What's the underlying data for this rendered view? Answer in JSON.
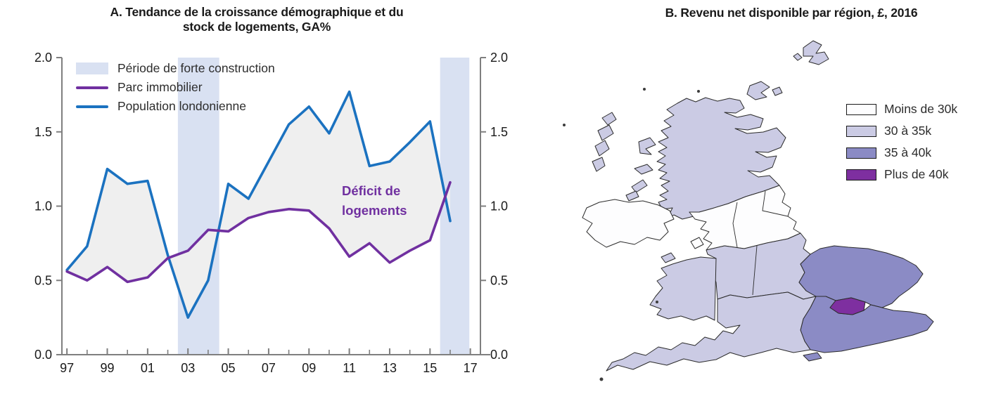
{
  "panel_a": {
    "title": "A. Tendance de la croissance démographique et du\nstock de logements, GA%",
    "annotation": "Déficit de\nlogements",
    "annotation_color": "#7030A0"
  },
  "chart_data": {
    "type": "line",
    "title": "A. Tendance de la croissance démographique et du stock de logements, GA%",
    "xlabel": "",
    "ylabel": "GA%",
    "x": [
      1997,
      1998,
      1999,
      2000,
      2001,
      2002,
      2003,
      2004,
      2005,
      2006,
      2007,
      2008,
      2009,
      2010,
      2011,
      2012,
      2013,
      2014,
      2015,
      2016
    ],
    "series": [
      {
        "name": "Parc immobilier",
        "color": "#7030A0",
        "values": [
          0.56,
          0.5,
          0.59,
          0.49,
          0.52,
          0.65,
          0.7,
          0.84,
          0.83,
          0.92,
          0.96,
          0.98,
          0.97,
          0.85,
          0.66,
          0.75,
          0.62,
          0.7,
          0.77,
          1.16
        ]
      },
      {
        "name": "Population londonienne",
        "color": "#1B72C0",
        "values": [
          0.57,
          0.73,
          1.25,
          1.15,
          1.17,
          0.67,
          0.25,
          0.5,
          1.15,
          1.05,
          1.3,
          1.55,
          1.67,
          1.49,
          1.77,
          1.27,
          1.3,
          1.43,
          1.57,
          0.9
        ]
      }
    ],
    "bands": {
      "label": "Période de forte construction",
      "color": "#D9E1F2",
      "ranges": [
        [
          2002.5,
          2004.55
        ],
        [
          2015.5,
          2016.95
        ]
      ]
    },
    "fill_between": {
      "between": [
        "Population londonienne",
        "Parc immobilier"
      ],
      "color": "#EFEFEF"
    },
    "ylim": [
      0,
      2
    ],
    "xlim": [
      1996.75,
      2017.5
    ],
    "grid": false,
    "legend_position": "top-left-inside",
    "dual_y_axis": true,
    "axis_color": "#7F7F7F",
    "y_ticks": [
      {
        "v": 0.0,
        "label": "0.0"
      },
      {
        "v": 0.5,
        "label": "0.5"
      },
      {
        "v": 1.0,
        "label": "1.0"
      },
      {
        "v": 1.5,
        "label": "1.5"
      },
      {
        "v": 2.0,
        "label": "2.0"
      }
    ],
    "x_ticks_major": [
      {
        "v": 1997,
        "label": "97"
      },
      {
        "v": 1999,
        "label": "99"
      },
      {
        "v": 2001,
        "label": "01"
      },
      {
        "v": 2003,
        "label": "03"
      },
      {
        "v": 2005,
        "label": "05"
      },
      {
        "v": 2007,
        "label": "07"
      },
      {
        "v": 2009,
        "label": "09"
      },
      {
        "v": 2011,
        "label": "11"
      },
      {
        "v": 2013,
        "label": "13"
      },
      {
        "v": 2015,
        "label": "15"
      },
      {
        "v": 2017,
        "label": "17"
      }
    ],
    "x_minor_tick_step": 1
  },
  "panel_b": {
    "title": "B. Revenu net disponible par région, £, 2016"
  },
  "map": {
    "outline_color": "#2b2b2b",
    "bands": {
      "b1": {
        "label": "Moins de 30k",
        "color": "#FDFDFE"
      },
      "b2": {
        "label": "30 à 35k",
        "color": "#CBCBE4"
      },
      "b3": {
        "label": "35 à 40k",
        "color": "#8B8BC5"
      },
      "b4": {
        "label": "Plus de 40k",
        "color": "#7E2FA0"
      }
    },
    "legend_order": [
      "b1",
      "b2",
      "b3",
      "b4"
    ],
    "regions": [
      {
        "id": "scotland",
        "band": "b2"
      },
      {
        "id": "shetland",
        "band": "b2"
      },
      {
        "id": "orkney",
        "band": "b2"
      },
      {
        "id": "outer-hebrides",
        "band": "b2"
      },
      {
        "id": "inner-hebrides",
        "band": "b2"
      },
      {
        "id": "northern-ireland",
        "band": "b1"
      },
      {
        "id": "isle-of-man",
        "band": "b1"
      },
      {
        "id": "north-england",
        "band": "b1"
      },
      {
        "id": "midlands",
        "band": "b2"
      },
      {
        "id": "wales",
        "band": "b2"
      },
      {
        "id": "anglesey",
        "band": "b2"
      },
      {
        "id": "east-of-england",
        "band": "b3"
      },
      {
        "id": "london",
        "band": "b4"
      },
      {
        "id": "south-east",
        "band": "b3"
      },
      {
        "id": "isle-of-wight",
        "band": "b3"
      },
      {
        "id": "south-west",
        "band": "b2"
      }
    ]
  }
}
